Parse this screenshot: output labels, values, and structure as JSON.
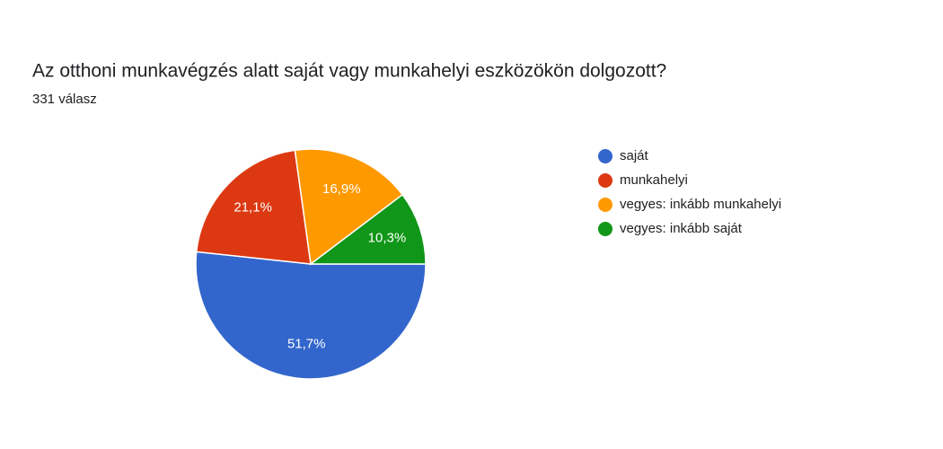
{
  "chart_data": {
    "type": "pie",
    "title": "Az otthoni munkavégzés alatt saját vagy munkahelyi eszközökön dolgozott?",
    "subtitle": "331 válasz",
    "categories": [
      "saját",
      "munkahelyi",
      "vegyes: inkább munkahelyi",
      "vegyes: inkább saját"
    ],
    "values": [
      51.7,
      21.1,
      16.9,
      10.3
    ],
    "value_labels": [
      "51,7%",
      "21,1%",
      "16,9%",
      "10,3%"
    ],
    "colors": [
      "#3366cc",
      "#dc3912",
      "#ff9900",
      "#109618"
    ],
    "legend": "right"
  }
}
